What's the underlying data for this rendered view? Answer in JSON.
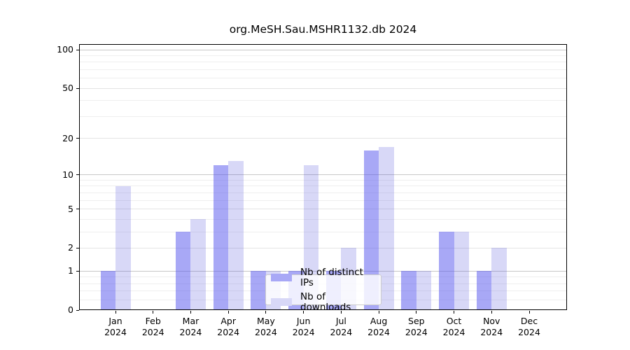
{
  "title": "org.MeSH.Sau.MSHR1132.db 2024",
  "chart_data": {
    "type": "bar",
    "title": "org.MeSH.Sau.MSHR1132.db 2024",
    "categories": [
      "Jan",
      "Feb",
      "Mar",
      "Apr",
      "May",
      "Jun",
      "Jul",
      "Aug",
      "Sep",
      "Oct",
      "Nov",
      "Dec"
    ],
    "year": "2024",
    "series": [
      {
        "name": "Nb of distinct IPs",
        "color": "#5151ed",
        "alpha": 0.5,
        "effective_color": "#a8a8f6",
        "values": [
          1,
          0,
          3,
          12,
          1,
          1,
          1,
          16,
          1,
          3,
          1,
          0
        ]
      },
      {
        "name": "Nb of downloads",
        "color": "#3c3cd7",
        "alpha": 0.2,
        "effective_color": "#d8d8f7",
        "values": [
          8,
          0,
          4,
          13,
          1,
          12,
          2,
          17,
          1,
          3,
          2,
          0
        ]
      }
    ],
    "yscale": "log10(1+x)",
    "yticks": [
      0,
      1,
      2,
      5,
      10,
      20,
      50,
      100
    ],
    "decade_ticks": [
      1,
      10,
      100
    ],
    "mid_ticks": [
      2,
      5,
      20,
      50
    ],
    "minor_ticks": [
      0.2,
      0.4,
      0.6,
      0.8,
      3,
      4,
      6,
      7,
      8,
      9,
      30,
      40,
      60,
      70,
      80,
      90
    ],
    "ylim": [
      0,
      110
    ],
    "xlabel": "",
    "ylabel": "",
    "grid": true,
    "legend_position": "inside-bottom-center"
  },
  "colors": {
    "background": "#ffffff",
    "axis": "#000000",
    "major_grid": "#c8c8c8",
    "mid_grid": "#e4e4e4",
    "minor_grid": "#efefef",
    "legend_border": "#cccccc"
  }
}
